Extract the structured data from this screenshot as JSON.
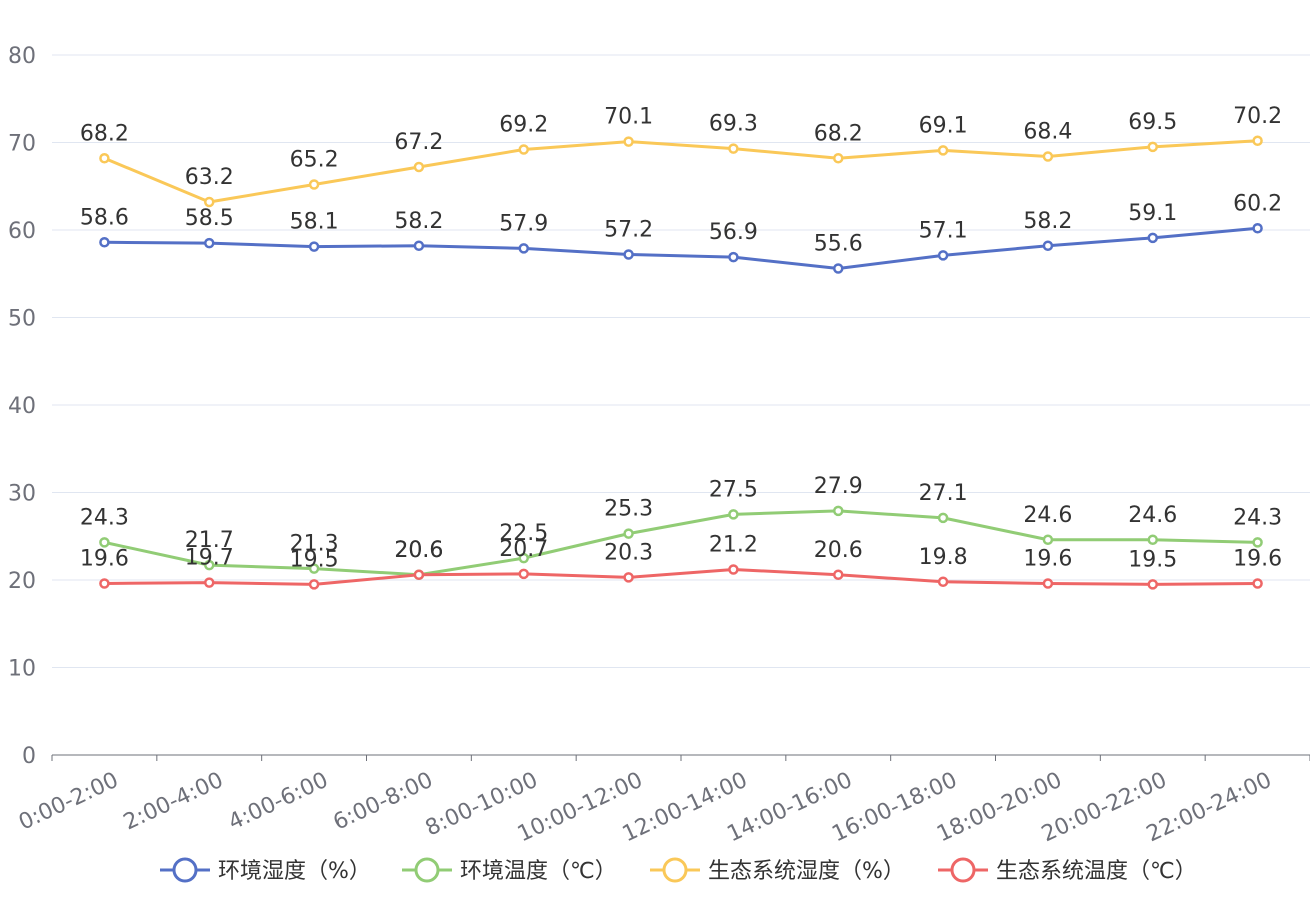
{
  "chart_data": {
    "type": "line",
    "categories": [
      "0:00-2:00",
      "2:00-4:00",
      "4:00-6:00",
      "6:00-8:00",
      "8:00-10:00",
      "10:00-12:00",
      "12:00-14:00",
      "14:00-16:00",
      "16:00-18:00",
      "18:00-20:00",
      "20:00-22:00",
      "22:00-24:00"
    ],
    "ylim": [
      0,
      80
    ],
    "yticks": [
      0,
      10,
      20,
      30,
      40,
      50,
      60,
      70,
      80
    ],
    "grid": true,
    "legend_position": "bottom",
    "series": [
      {
        "name": "环境湿度（%）",
        "color": "#5470c6",
        "values": [
          58.6,
          58.5,
          58.1,
          58.2,
          57.9,
          57.2,
          56.9,
          55.6,
          57.1,
          58.2,
          59.1,
          60.2
        ]
      },
      {
        "name": "环境温度（℃）",
        "color": "#91cc75",
        "values": [
          24.3,
          21.7,
          21.3,
          20.6,
          22.5,
          25.3,
          27.5,
          27.9,
          27.1,
          24.6,
          24.6,
          24.3
        ]
      },
      {
        "name": "生态系统湿度（%）",
        "color": "#fac858",
        "values": [
          68.2,
          63.2,
          65.2,
          67.2,
          69.2,
          70.1,
          69.3,
          68.2,
          69.1,
          68.4,
          69.5,
          70.2
        ]
      },
      {
        "name": "生态系统温度（℃）",
        "color": "#ee6666",
        "values": [
          19.6,
          19.7,
          19.5,
          20.6,
          20.7,
          20.3,
          21.2,
          20.6,
          19.8,
          19.6,
          19.5,
          19.6
        ]
      }
    ]
  }
}
